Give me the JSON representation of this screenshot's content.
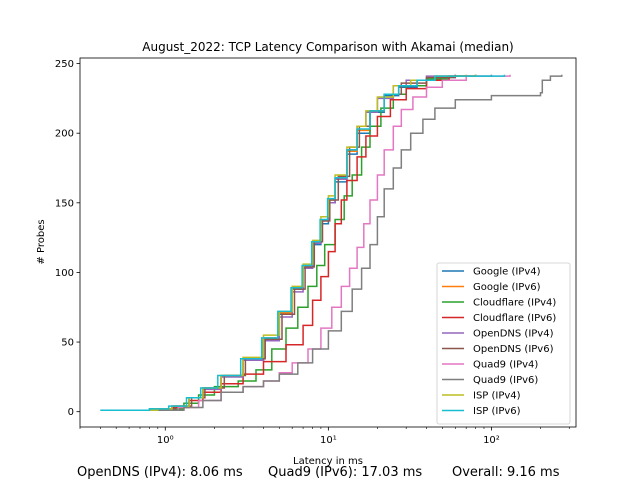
{
  "chart_data": {
    "type": "line",
    "title": "August_2022: TCP Latency Comparison with Akamai (median)",
    "xlabel": "Latency in ms",
    "ylabel": "# Probes",
    "xscale": "log",
    "xlim": [
      0.3,
      330
    ],
    "ylim": [
      -11,
      254
    ],
    "xticks": [
      1,
      10,
      100
    ],
    "xtick_labels": [
      "10⁰",
      "10¹",
      "10²"
    ],
    "yticks": [
      0,
      50,
      100,
      150,
      200,
      250
    ],
    "grid": false,
    "legend_position": "lower-right",
    "series": [
      {
        "name": "Google (IPv4)",
        "color": "#1f77b4",
        "points": [
          [
            0.4,
            1
          ],
          [
            0.8,
            2
          ],
          [
            1.1,
            4
          ],
          [
            1.4,
            10
          ],
          [
            1.7,
            17
          ],
          [
            2.2,
            25
          ],
          [
            3,
            37
          ],
          [
            4,
            52
          ],
          [
            5,
            70
          ],
          [
            6,
            88
          ],
          [
            7,
            103
          ],
          [
            8,
            120
          ],
          [
            9,
            135
          ],
          [
            10,
            150
          ],
          [
            11,
            165
          ],
          [
            13,
            185
          ],
          [
            15,
            200
          ],
          [
            18,
            215
          ],
          [
            22,
            227
          ],
          [
            27,
            233
          ],
          [
            35,
            238
          ],
          [
            45,
            240
          ],
          [
            60,
            241
          ],
          [
            100,
            242
          ]
        ]
      },
      {
        "name": "Google (IPv6)",
        "color": "#ff7f0e",
        "points": [
          [
            0.45,
            1
          ],
          [
            0.85,
            2
          ],
          [
            1.1,
            4
          ],
          [
            1.4,
            10
          ],
          [
            1.7,
            17
          ],
          [
            2.2,
            26
          ],
          [
            3,
            38
          ],
          [
            4,
            53
          ],
          [
            5,
            71
          ],
          [
            6,
            89
          ],
          [
            7,
            104
          ],
          [
            8,
            121
          ],
          [
            9,
            137
          ],
          [
            10,
            152
          ],
          [
            11,
            167
          ],
          [
            13,
            187
          ],
          [
            15,
            202
          ],
          [
            18,
            216
          ],
          [
            22,
            228
          ],
          [
            27,
            234
          ],
          [
            35,
            238
          ],
          [
            45,
            241
          ],
          [
            70,
            242
          ]
        ]
      },
      {
        "name": "Cloudflare (IPv4)",
        "color": "#2ca02c",
        "points": [
          [
            0.6,
            1
          ],
          [
            1,
            2
          ],
          [
            1.3,
            6
          ],
          [
            1.6,
            12
          ],
          [
            2,
            18
          ],
          [
            2.8,
            22
          ],
          [
            3.6,
            30
          ],
          [
            4.5,
            45
          ],
          [
            5.5,
            60
          ],
          [
            6.5,
            75
          ],
          [
            7.5,
            90
          ],
          [
            8.5,
            105
          ],
          [
            9.5,
            120
          ],
          [
            11,
            138
          ],
          [
            12.5,
            155
          ],
          [
            14,
            170
          ],
          [
            16,
            190
          ],
          [
            18,
            205
          ],
          [
            21,
            218
          ],
          [
            25,
            228
          ],
          [
            30,
            234
          ],
          [
            40,
            239
          ],
          [
            55,
            241
          ],
          [
            80,
            242
          ]
        ]
      },
      {
        "name": "Cloudflare (IPv6)",
        "color": "#d62728",
        "points": [
          [
            0.7,
            1
          ],
          [
            1.1,
            3
          ],
          [
            1.4,
            8
          ],
          [
            1.7,
            14
          ],
          [
            2.2,
            20
          ],
          [
            3,
            27
          ],
          [
            4,
            36
          ],
          [
            5.5,
            48
          ],
          [
            7,
            62
          ],
          [
            8,
            80
          ],
          [
            9,
            97
          ],
          [
            10,
            115
          ],
          [
            11,
            135
          ],
          [
            12,
            152
          ],
          [
            13,
            166
          ],
          [
            15,
            183
          ],
          [
            17,
            198
          ],
          [
            20,
            212
          ],
          [
            24,
            224
          ],
          [
            30,
            232
          ],
          [
            40,
            238
          ],
          [
            55,
            241
          ],
          [
            80,
            242
          ]
        ]
      },
      {
        "name": "OpenDNS (IPv4)",
        "color": "#9467bd",
        "points": [
          [
            0.5,
            1
          ],
          [
            0.9,
            2
          ],
          [
            1.1,
            4
          ],
          [
            1.4,
            10
          ],
          [
            1.7,
            16
          ],
          [
            2.2,
            25
          ],
          [
            3,
            37
          ],
          [
            4,
            51
          ],
          [
            5,
            68
          ],
          [
            6,
            86
          ],
          [
            7,
            103
          ],
          [
            8,
            121
          ],
          [
            9,
            137
          ],
          [
            10,
            150
          ],
          [
            11,
            167
          ],
          [
            13,
            188
          ],
          [
            15,
            205
          ],
          [
            17,
            215
          ],
          [
            20,
            225
          ],
          [
            25,
            234
          ],
          [
            30,
            238
          ],
          [
            40,
            241
          ],
          [
            60,
            242
          ]
        ]
      },
      {
        "name": "OpenDNS (IPv6)",
        "color": "#8c564b",
        "points": [
          [
            0.5,
            1
          ],
          [
            0.9,
            2
          ],
          [
            1.15,
            4
          ],
          [
            1.45,
            10
          ],
          [
            1.75,
            17
          ],
          [
            2.3,
            26
          ],
          [
            3.1,
            38
          ],
          [
            4.1,
            52
          ],
          [
            5.2,
            70
          ],
          [
            6.2,
            88
          ],
          [
            7.2,
            104
          ],
          [
            8.2,
            122
          ],
          [
            9.2,
            137
          ],
          [
            10.2,
            152
          ],
          [
            11.5,
            169
          ],
          [
            13.5,
            190
          ],
          [
            15.5,
            205
          ],
          [
            18,
            216
          ],
          [
            22,
            228
          ],
          [
            28,
            236
          ],
          [
            40,
            240
          ],
          [
            60,
            242
          ]
        ]
      },
      {
        "name": "Quad9 (IPv4)",
        "color": "#e377c2",
        "points": [
          [
            0.8,
            1
          ],
          [
            1.2,
            3
          ],
          [
            1.6,
            8
          ],
          [
            2.2,
            14
          ],
          [
            3,
            18
          ],
          [
            4,
            22
          ],
          [
            5,
            28
          ],
          [
            6,
            35
          ],
          [
            7.5,
            45
          ],
          [
            9,
            60
          ],
          [
            10.5,
            75
          ],
          [
            12,
            90
          ],
          [
            13.5,
            103
          ],
          [
            15,
            118
          ],
          [
            16.5,
            135
          ],
          [
            18,
            152
          ],
          [
            20,
            170
          ],
          [
            22,
            188
          ],
          [
            25,
            205
          ],
          [
            28,
            217
          ],
          [
            33,
            226
          ],
          [
            40,
            233
          ],
          [
            50,
            238
          ],
          [
            70,
            241
          ],
          [
            130,
            242
          ]
        ]
      },
      {
        "name": "Quad9 (IPv6)",
        "color": "#7f7f7f",
        "points": [
          [
            0.9,
            1
          ],
          [
            1.3,
            3
          ],
          [
            1.7,
            8
          ],
          [
            2.2,
            14
          ],
          [
            3,
            18
          ],
          [
            4,
            22
          ],
          [
            5,
            27
          ],
          [
            6.5,
            35
          ],
          [
            8,
            45
          ],
          [
            10,
            58
          ],
          [
            12,
            72
          ],
          [
            14,
            88
          ],
          [
            16,
            103
          ],
          [
            18,
            120
          ],
          [
            20,
            140
          ],
          [
            22,
            160
          ],
          [
            25,
            175
          ],
          [
            28,
            188
          ],
          [
            32,
            200
          ],
          [
            38,
            210
          ],
          [
            45,
            218
          ],
          [
            60,
            224
          ],
          [
            100,
            227
          ],
          [
            200,
            229
          ],
          [
            205,
            238
          ],
          [
            230,
            241
          ],
          [
            270,
            242
          ]
        ]
      },
      {
        "name": "ISP (IPv4)",
        "color": "#bcbd22",
        "points": [
          [
            0.5,
            1
          ],
          [
            0.9,
            2
          ],
          [
            1.1,
            4
          ],
          [
            1.4,
            10
          ],
          [
            1.7,
            17
          ],
          [
            2.2,
            26
          ],
          [
            3,
            39
          ],
          [
            4,
            55
          ],
          [
            5,
            72
          ],
          [
            6,
            90
          ],
          [
            7,
            106
          ],
          [
            8,
            123
          ],
          [
            9,
            140
          ],
          [
            10,
            155
          ],
          [
            11,
            170
          ],
          [
            13,
            190
          ],
          [
            15,
            205
          ],
          [
            17,
            216
          ],
          [
            20,
            226
          ],
          [
            25,
            234
          ],
          [
            32,
            238
          ],
          [
            45,
            241
          ],
          [
            80,
            242
          ]
        ]
      },
      {
        "name": "ISP (IPv6)",
        "color": "#17becf",
        "points": [
          [
            0.4,
            1
          ],
          [
            0.8,
            2
          ],
          [
            1.05,
            4
          ],
          [
            1.35,
            10
          ],
          [
            1.65,
            17
          ],
          [
            2.1,
            26
          ],
          [
            2.9,
            38
          ],
          [
            3.9,
            53
          ],
          [
            4.9,
            72
          ],
          [
            5.9,
            89
          ],
          [
            6.9,
            105
          ],
          [
            7.9,
            122
          ],
          [
            8.9,
            138
          ],
          [
            9.9,
            153
          ],
          [
            11,
            168
          ],
          [
            13,
            188
          ],
          [
            15,
            203
          ],
          [
            18,
            216
          ],
          [
            22,
            228
          ],
          [
            27,
            234
          ],
          [
            35,
            238
          ],
          [
            45,
            241
          ],
          [
            120,
            242
          ]
        ]
      }
    ]
  },
  "footer": {
    "stat1": "OpenDNS (IPv4): 8.06 ms",
    "stat2": "Quad9 (IPv6): 17.03 ms",
    "stat3": "Overall: 9.16 ms"
  }
}
